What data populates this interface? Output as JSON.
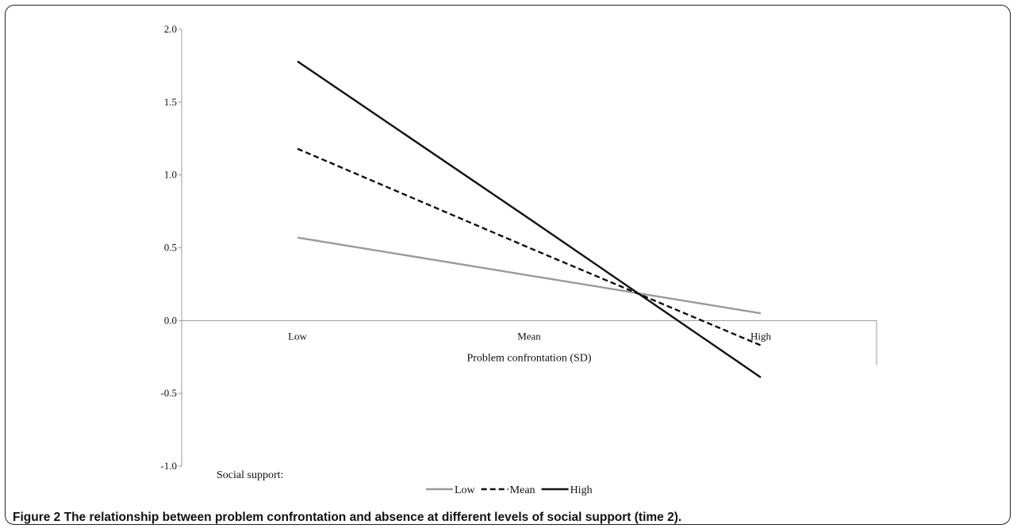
{
  "caption": {
    "label": "Figure 2",
    "text": "The relationship between problem confrontation and absence at different levels of social support (time 2)."
  },
  "colors": {
    "Low": "#9a9a9a",
    "Mean": "#111111",
    "High": "#111111",
    "axis": "#999999"
  },
  "chart_data": {
    "type": "line",
    "title": "",
    "xlabel": "Problem confrontation (SD)",
    "ylabel": "",
    "categories": [
      "Low",
      "Mean",
      "High"
    ],
    "ylim": [
      -1.0,
      2.0
    ],
    "yticks": [
      "2.0",
      "1.5",
      "1.0",
      "0.5",
      "0.0",
      "-0.5",
      "-1.0"
    ],
    "grid": false,
    "legend_title": "Social support:",
    "legend_position": "bottom",
    "series": [
      {
        "name": "Low",
        "values": [
          0.57,
          0.31,
          0.05
        ],
        "style": "solid",
        "color": "#9a9a9a"
      },
      {
        "name": "Mean",
        "values": [
          1.18,
          0.5,
          -0.17
        ],
        "style": "dashed",
        "color": "#111111"
      },
      {
        "name": "High",
        "values": [
          1.78,
          0.7,
          -0.39
        ],
        "style": "solid",
        "color": "#111111"
      }
    ]
  }
}
